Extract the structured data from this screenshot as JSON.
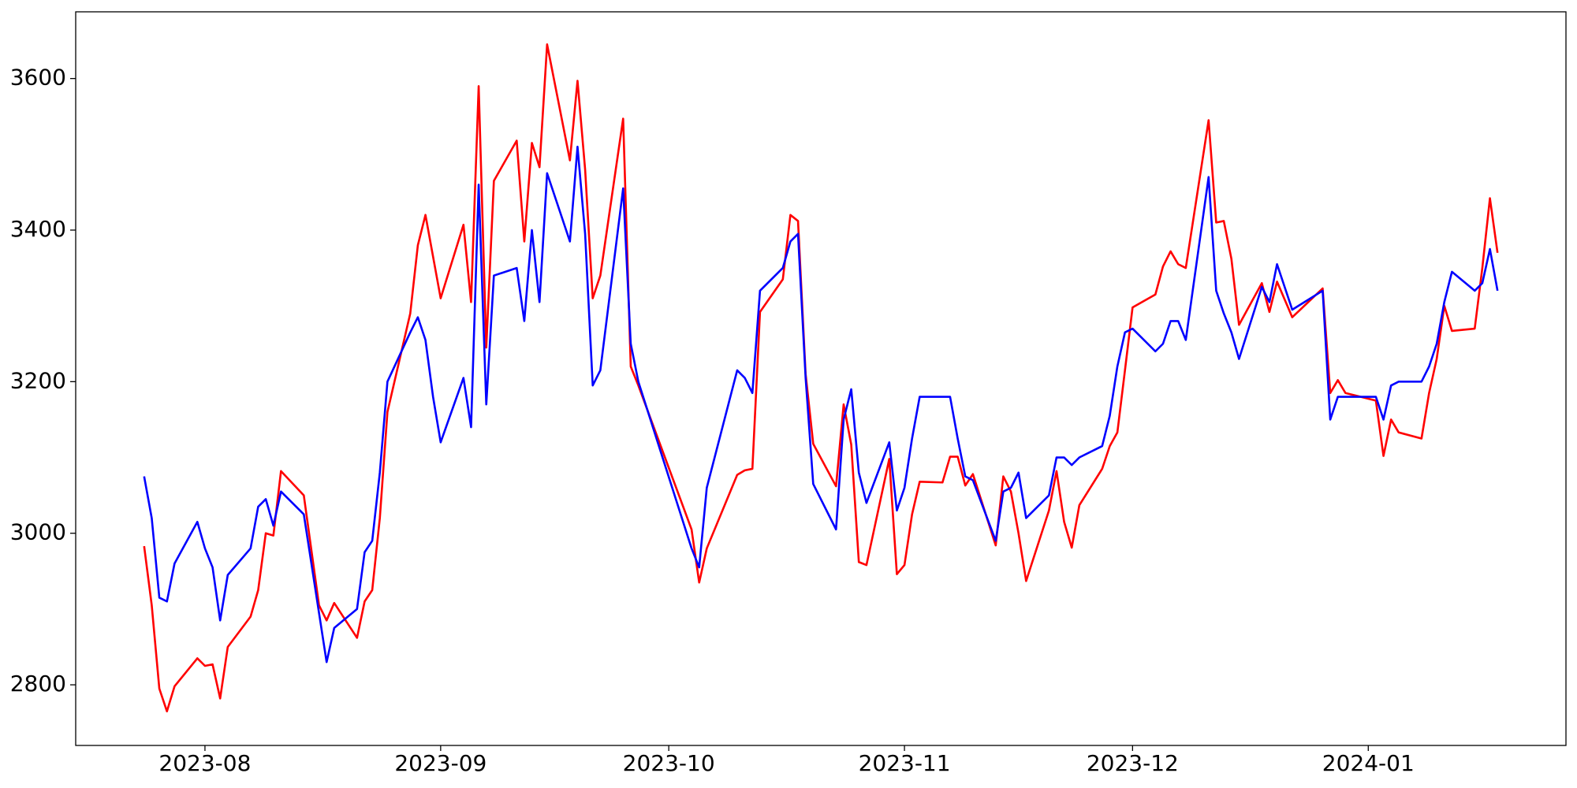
{
  "chart_data": {
    "type": "line",
    "x": [
      "2023-07-24",
      "2023-07-25",
      "2023-07-26",
      "2023-07-27",
      "2023-07-28",
      "2023-07-31",
      "2023-08-01",
      "2023-08-02",
      "2023-08-03",
      "2023-08-04",
      "2023-08-07",
      "2023-08-08",
      "2023-08-09",
      "2023-08-10",
      "2023-08-11",
      "2023-08-14",
      "2023-08-16",
      "2023-08-17",
      "2023-08-18",
      "2023-08-21",
      "2023-08-22",
      "2023-08-23",
      "2023-08-24",
      "2023-08-25",
      "2023-08-28",
      "2023-08-29",
      "2023-08-30",
      "2023-08-31",
      "2023-09-01",
      "2023-09-04",
      "2023-09-05",
      "2023-09-06",
      "2023-09-07",
      "2023-09-08",
      "2023-09-11",
      "2023-09-12",
      "2023-09-13",
      "2023-09-14",
      "2023-09-15",
      "2023-09-18",
      "2023-09-19",
      "2023-09-20",
      "2023-09-21",
      "2023-09-22",
      "2023-09-25",
      "2023-09-26",
      "2023-09-27",
      "2023-10-04",
      "2023-10-05",
      "2023-10-06",
      "2023-10-10",
      "2023-10-11",
      "2023-10-12",
      "2023-10-13",
      "2023-10-16",
      "2023-10-17",
      "2023-10-18",
      "2023-10-19",
      "2023-10-20",
      "2023-10-23",
      "2023-10-24",
      "2023-10-25",
      "2023-10-26",
      "2023-10-27",
      "2023-10-30",
      "2023-10-31",
      "2023-11-01",
      "2023-11-02",
      "2023-11-03",
      "2023-11-06",
      "2023-11-07",
      "2023-11-08",
      "2023-11-09",
      "2023-11-10",
      "2023-11-13",
      "2023-11-14",
      "2023-11-15",
      "2023-11-16",
      "2023-11-17",
      "2023-11-20",
      "2023-11-21",
      "2023-11-22",
      "2023-11-23",
      "2023-11-24",
      "2023-11-27",
      "2023-11-28",
      "2023-11-29",
      "2023-11-30",
      "2023-12-01",
      "2023-12-04",
      "2023-12-05",
      "2023-12-06",
      "2023-12-07",
      "2023-12-08",
      "2023-12-11",
      "2023-12-12",
      "2023-12-13",
      "2023-12-14",
      "2023-12-15",
      "2023-12-18",
      "2023-12-19",
      "2023-12-20",
      "2023-12-22",
      "2023-12-26",
      "2023-12-27",
      "2023-12-28",
      "2023-12-29",
      "2024-01-02",
      "2024-01-03",
      "2024-01-04",
      "2024-01-05",
      "2024-01-08",
      "2024-01-09",
      "2024-01-10",
      "2024-01-11",
      "2024-01-12",
      "2024-01-15",
      "2024-01-16",
      "2024-01-17",
      "2024-01-18"
    ],
    "series": [
      {
        "color": "#ff0000",
        "values": [
          2983,
          2905,
          2795,
          2765,
          2798,
          2835,
          2825,
          2827,
          2782,
          2850,
          2890,
          2925,
          3000,
          2997,
          3082,
          3050,
          2905,
          2885,
          2908,
          2862,
          2910,
          2925,
          3020,
          3160,
          3290,
          3380,
          3420,
          3365,
          3310,
          3407,
          3305,
          3590,
          3245,
          3465,
          3518,
          3385,
          3515,
          3483,
          3645,
          3492,
          3597,
          3480,
          3310,
          3340,
          3547,
          3220,
          3195,
          3005,
          2935,
          2980,
          3077,
          3083,
          3085,
          3292,
          3335,
          3420,
          3412,
          3210,
          3118,
          3062,
          3170,
          3117,
          2962,
          2958,
          3098,
          2946,
          2958,
          3025,
          3068,
          3067,
          3101,
          3101,
          3063,
          3078,
          2984,
          3075,
          3055,
          3000,
          2937,
          3030,
          3082,
          3015,
          2981,
          3037,
          3085,
          3115,
          3133,
          3215,
          3298,
          3315,
          3352,
          3372,
          3355,
          3350,
          3545,
          3410,
          3412,
          3362,
          3275,
          3330,
          3292,
          3332,
          3285,
          3323,
          3185,
          3202,
          3185,
          3175,
          3102,
          3150,
          3133,
          3125,
          3185,
          3230,
          3300,
          3267,
          3270,
          3350,
          3442,
          3370
        ]
      },
      {
        "color": "#0000ff",
        "values": [
          3075,
          3020,
          2915,
          2910,
          2960,
          3015,
          2980,
          2955,
          2885,
          2945,
          2980,
          3035,
          3045,
          3010,
          3055,
          3025,
          2895,
          2830,
          2875,
          2900,
          2975,
          2990,
          3080,
          3200,
          3265,
          3285,
          3255,
          3180,
          3120,
          3205,
          3140,
          3460,
          3170,
          3340,
          3350,
          3280,
          3400,
          3305,
          3475,
          3385,
          3510,
          3395,
          3195,
          3215,
          3455,
          3250,
          3200,
          2980,
          2955,
          3060,
          3215,
          3205,
          3185,
          3320,
          3350,
          3385,
          3395,
          3205,
          3065,
          3005,
          3150,
          3190,
          3080,
          3040,
          3120,
          3030,
          3060,
          3125,
          3180,
          3180,
          3180,
          3125,
          3075,
          3070,
          2990,
          3055,
          3060,
          3080,
          3020,
          3050,
          3100,
          3100,
          3090,
          3100,
          3115,
          3155,
          3220,
          3265,
          3270,
          3240,
          3250,
          3280,
          3280,
          3255,
          3470,
          3320,
          3290,
          3265,
          3230,
          3325,
          3305,
          3355,
          3295,
          3320,
          3150,
          3180,
          3180,
          3180,
          3150,
          3195,
          3200,
          3200,
          3220,
          3250,
          3305,
          3345,
          3320,
          3330,
          3375,
          3320
        ]
      }
    ],
    "xlim": [
      "2023-07-15",
      "2024-01-27"
    ],
    "xticks": [
      {
        "value": "2023-08-01",
        "label": "2023-08"
      },
      {
        "value": "2023-09-01",
        "label": "2023-09"
      },
      {
        "value": "2023-10-01",
        "label": "2023-10"
      },
      {
        "value": "2023-11-01",
        "label": "2023-11"
      },
      {
        "value": "2023-12-01",
        "label": "2023-12"
      },
      {
        "value": "2024-01-01",
        "label": "2024-01"
      }
    ],
    "ylim": [
      2720,
      3688
    ],
    "yticks": [
      2800,
      3000,
      3200,
      3400,
      3600
    ],
    "grid": false
  }
}
